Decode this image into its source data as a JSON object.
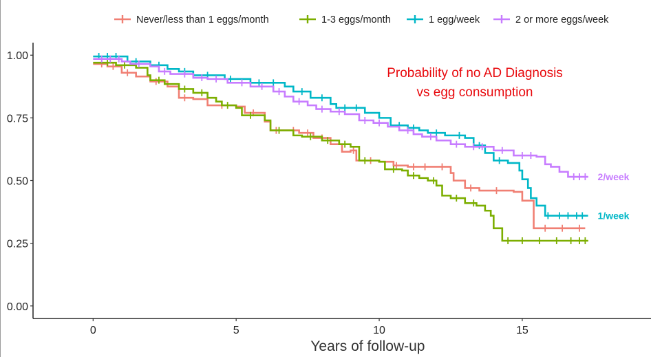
{
  "chart_data": {
    "type": "line",
    "subtype": "kaplan-meier step curves",
    "xlabel": "Years of follow-up",
    "ylabel": "",
    "xlim": [
      -2.1,
      19.5
    ],
    "ylim": [
      -0.05,
      1.05
    ],
    "x_ticks": [
      0,
      5,
      10,
      15
    ],
    "x_tick_labels": [
      "0",
      "5",
      "10",
      "15"
    ],
    "y_ticks": [
      0.0,
      0.25,
      0.5,
      0.75,
      1.0
    ],
    "y_tick_labels": [
      "0.00",
      "0.25",
      "0.50",
      "0.75",
      "1.00"
    ],
    "grid": false,
    "legend_position": "top",
    "annotation": {
      "lines": [
        "Probability of no AD Diagnosis",
        "vs egg consumption"
      ],
      "color": "#e8090d"
    },
    "series": [
      {
        "name": "Never/less than 1 eggs/month",
        "color": "#f07f73",
        "steps": [
          [
            0,
            0.965
          ],
          [
            0.5,
            0.955
          ],
          [
            1.0,
            0.93
          ],
          [
            1.5,
            0.915
          ],
          [
            2.0,
            0.895
          ],
          [
            2.6,
            0.875
          ],
          [
            3.0,
            0.83
          ],
          [
            3.5,
            0.825
          ],
          [
            4.0,
            0.8
          ],
          [
            5.0,
            0.795
          ],
          [
            5.3,
            0.77
          ],
          [
            6.0,
            0.735
          ],
          [
            6.2,
            0.7
          ],
          [
            7.2,
            0.69
          ],
          [
            7.7,
            0.67
          ],
          [
            8.3,
            0.645
          ],
          [
            8.7,
            0.615
          ],
          [
            9.0,
            0.62
          ],
          [
            9.2,
            0.58
          ],
          [
            10.0,
            0.575
          ],
          [
            10.5,
            0.56
          ],
          [
            11.0,
            0.555
          ],
          [
            12.5,
            0.53
          ],
          [
            12.6,
            0.5
          ],
          [
            13.0,
            0.47
          ],
          [
            13.5,
            0.46
          ],
          [
            14.7,
            0.455
          ],
          [
            15.0,
            0.42
          ],
          [
            15.4,
            0.31
          ],
          [
            17.2,
            0.31
          ]
        ],
        "censor_x": [
          0.3,
          0.7,
          1.2,
          2.2,
          3.2,
          4.5,
          5.6,
          6.4,
          7.0,
          7.5,
          8.0,
          9.1,
          9.7,
          10.6,
          11.2,
          11.6,
          12.2,
          13.2,
          14.1,
          15.8,
          16.4,
          17.0
        ],
        "end_label": ""
      },
      {
        "name": "1-3 eggs/month",
        "color": "#7cae00",
        "steps": [
          [
            0,
            0.97
          ],
          [
            0.8,
            0.96
          ],
          [
            1.5,
            0.95
          ],
          [
            1.9,
            0.92
          ],
          [
            2.0,
            0.9
          ],
          [
            2.5,
            0.885
          ],
          [
            3.0,
            0.865
          ],
          [
            3.5,
            0.85
          ],
          [
            4.0,
            0.83
          ],
          [
            4.3,
            0.815
          ],
          [
            4.5,
            0.8
          ],
          [
            5.0,
            0.79
          ],
          [
            5.2,
            0.76
          ],
          [
            6.0,
            0.74
          ],
          [
            6.2,
            0.7
          ],
          [
            7.0,
            0.68
          ],
          [
            7.3,
            0.675
          ],
          [
            8.0,
            0.66
          ],
          [
            8.6,
            0.645
          ],
          [
            9.0,
            0.635
          ],
          [
            9.3,
            0.58
          ],
          [
            10.0,
            0.575
          ],
          [
            10.2,
            0.545
          ],
          [
            10.8,
            0.54
          ],
          [
            11.0,
            0.52
          ],
          [
            11.4,
            0.51
          ],
          [
            11.7,
            0.5
          ],
          [
            12.0,
            0.48
          ],
          [
            12.2,
            0.44
          ],
          [
            12.5,
            0.43
          ],
          [
            13.0,
            0.41
          ],
          [
            13.4,
            0.4
          ],
          [
            13.7,
            0.38
          ],
          [
            13.9,
            0.36
          ],
          [
            14.0,
            0.31
          ],
          [
            14.3,
            0.26
          ],
          [
            17.3,
            0.26
          ]
        ],
        "censor_x": [
          0.5,
          1.1,
          2.3,
          3.2,
          3.8,
          4.7,
          5.5,
          6.5,
          7.6,
          8.2,
          8.8,
          9.5,
          10.5,
          11.2,
          11.9,
          12.7,
          13.3,
          14.5,
          15.0,
          15.6,
          16.2,
          16.7,
          17.0,
          17.2
        ],
        "end_label": ""
      },
      {
        "name": "1 egg/week",
        "color": "#00b7c7",
        "steps": [
          [
            0,
            0.995
          ],
          [
            1.2,
            0.975
          ],
          [
            2.0,
            0.96
          ],
          [
            2.6,
            0.945
          ],
          [
            3.0,
            0.935
          ],
          [
            3.5,
            0.92
          ],
          [
            4.6,
            0.905
          ],
          [
            5.5,
            0.89
          ],
          [
            6.7,
            0.875
          ],
          [
            7.0,
            0.855
          ],
          [
            7.6,
            0.83
          ],
          [
            8.3,
            0.805
          ],
          [
            8.5,
            0.79
          ],
          [
            9.5,
            0.77
          ],
          [
            10.0,
            0.75
          ],
          [
            10.4,
            0.72
          ],
          [
            11.0,
            0.71
          ],
          [
            11.4,
            0.7
          ],
          [
            11.7,
            0.69
          ],
          [
            12.3,
            0.68
          ],
          [
            13.0,
            0.67
          ],
          [
            13.3,
            0.64
          ],
          [
            13.7,
            0.61
          ],
          [
            14.0,
            0.58
          ],
          [
            14.5,
            0.57
          ],
          [
            14.9,
            0.54
          ],
          [
            15.0,
            0.505
          ],
          [
            15.2,
            0.47
          ],
          [
            15.3,
            0.43
          ],
          [
            15.5,
            0.4
          ],
          [
            15.8,
            0.36
          ],
          [
            17.3,
            0.36
          ]
        ],
        "censor_x": [
          0.2,
          0.5,
          0.8,
          1.5,
          2.3,
          3.2,
          4.0,
          4.8,
          5.8,
          6.3,
          7.3,
          8.0,
          8.8,
          9.2,
          10.7,
          11.2,
          12.0,
          12.8,
          13.5,
          14.2,
          15.9,
          16.3,
          16.6,
          16.9,
          17.1
        ],
        "end_label": "1/week"
      },
      {
        "name": "2 or more eggs/week",
        "color": "#c77cff",
        "steps": [
          [
            0,
            0.985
          ],
          [
            1.0,
            0.975
          ],
          [
            1.3,
            0.965
          ],
          [
            2.0,
            0.955
          ],
          [
            2.3,
            0.935
          ],
          [
            2.7,
            0.925
          ],
          [
            3.5,
            0.91
          ],
          [
            4.0,
            0.905
          ],
          [
            4.7,
            0.89
          ],
          [
            5.5,
            0.875
          ],
          [
            6.3,
            0.855
          ],
          [
            6.7,
            0.835
          ],
          [
            7.0,
            0.815
          ],
          [
            7.5,
            0.8
          ],
          [
            7.8,
            0.785
          ],
          [
            8.3,
            0.775
          ],
          [
            8.8,
            0.765
          ],
          [
            9.3,
            0.74
          ],
          [
            9.8,
            0.73
          ],
          [
            10.3,
            0.715
          ],
          [
            10.7,
            0.7
          ],
          [
            11.2,
            0.685
          ],
          [
            11.5,
            0.675
          ],
          [
            12.0,
            0.66
          ],
          [
            12.5,
            0.645
          ],
          [
            13.0,
            0.635
          ],
          [
            14.0,
            0.62
          ],
          [
            14.7,
            0.6
          ],
          [
            15.5,
            0.595
          ],
          [
            15.8,
            0.565
          ],
          [
            16.0,
            0.555
          ],
          [
            16.3,
            0.535
          ],
          [
            16.6,
            0.515
          ],
          [
            17.3,
            0.515
          ]
        ],
        "censor_x": [
          0.3,
          0.6,
          0.9,
          1.6,
          2.5,
          3.2,
          3.8,
          4.3,
          5.2,
          5.9,
          6.5,
          7.2,
          8.0,
          8.6,
          9.5,
          10.0,
          11.0,
          11.8,
          12.7,
          13.3,
          13.6,
          14.3,
          15.0,
          15.3,
          16.8,
          17.0,
          17.2
        ],
        "end_label": "2/week"
      }
    ]
  }
}
